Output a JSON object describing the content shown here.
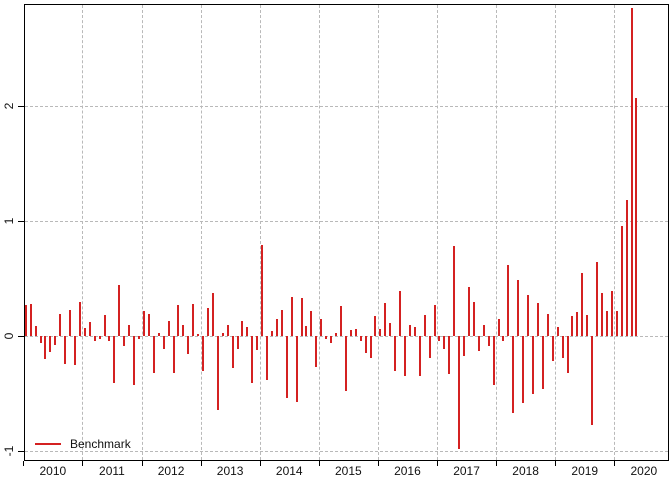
{
  "chart_data": {
    "type": "bar",
    "title": "",
    "xlabel": "",
    "ylabel": "",
    "x_start": "2010-01",
    "frequency": "monthly",
    "grid": "dotted gray grid at year boundaries (vertical) and integer values (horizontal)",
    "ylim": [
      -1.08,
      2.9
    ],
    "y_ticks": [
      -1,
      0,
      1,
      2
    ],
    "y_tick_labels": [
      "-1",
      "0",
      "1",
      "2"
    ],
    "x_tick_labels": [
      "2010",
      "2011",
      "2012",
      "2013",
      "2014",
      "2015",
      "2016",
      "2017",
      "2018",
      "2019",
      "2020"
    ],
    "legend": {
      "label": "Benchmark",
      "position": "bottom-left"
    },
    "colors": {
      "series": "#d42121",
      "grid": "#b9b9b9",
      "axis": "#000000",
      "text": "#111111",
      "background": "#ffffff"
    },
    "series": [
      {
        "name": "Benchmark",
        "color": "#d42121",
        "values": [
          0.27,
          0.28,
          0.09,
          -0.06,
          -0.2,
          -0.14,
          -0.08,
          0.19,
          -0.24,
          0.23,
          -0.25,
          0.3,
          0.07,
          0.12,
          -0.04,
          -0.03,
          0.18,
          -0.04,
          -0.41,
          0.44,
          -0.09,
          0.1,
          -0.43,
          -0.03,
          0.22,
          0.19,
          -0.32,
          0.03,
          -0.11,
          0.13,
          -0.32,
          0.27,
          0.1,
          -0.16,
          0.28,
          0.02,
          -0.3,
          0.24,
          0.37,
          -0.64,
          0.03,
          0.1,
          -0.28,
          -0.11,
          0.13,
          0.08,
          -0.41,
          -0.12,
          0.79,
          -0.38,
          0.04,
          0.15,
          0.23,
          -0.54,
          0.34,
          -0.57,
          0.33,
          0.09,
          0.22,
          -0.27,
          0.15,
          -0.03,
          -0.06,
          0.03,
          0.26,
          -0.48,
          0.05,
          0.06,
          -0.04,
          -0.15,
          -0.19,
          0.17,
          0.06,
          0.29,
          0.11,
          -0.3,
          0.39,
          -0.35,
          0.1,
          0.08,
          -0.35,
          0.18,
          -0.19,
          0.27,
          -0.04,
          -0.11,
          -0.33,
          0.78,
          -0.98,
          -0.17,
          0.43,
          0.3,
          -0.13,
          0.1,
          -0.09,
          -0.43,
          0.15,
          -0.04,
          0.62,
          -0.67,
          0.49,
          -0.58,
          0.36,
          -0.5,
          0.29,
          -0.46,
          0.19,
          -0.22,
          0.08,
          -0.19,
          -0.32,
          0.17,
          0.21,
          0.55,
          0.18,
          -0.77,
          0.64,
          0.37,
          0.22,
          0.39,
          0.22,
          0.96,
          1.18,
          2.85,
          2.07
        ]
      }
    ]
  }
}
